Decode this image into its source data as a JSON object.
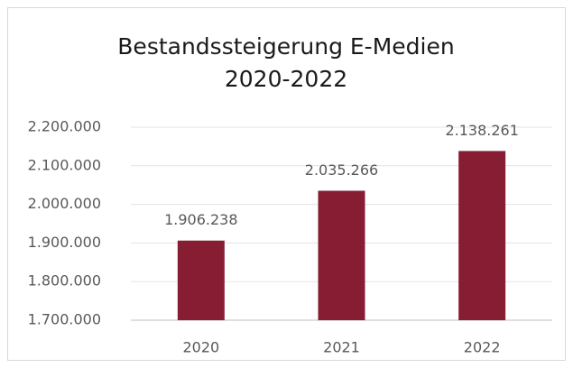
{
  "chart_data": {
    "type": "bar",
    "title": "Bestandssteigerung E-Medien 2020-2022",
    "categories": [
      "2020",
      "2021",
      "2022"
    ],
    "values": [
      1906238,
      2035266,
      2138261
    ],
    "value_labels": [
      "1.906.238",
      "2.035.266",
      "2.138.261"
    ],
    "color": "#861d33",
    "ylim": [
      1700000,
      2200000
    ],
    "yticks": [
      {
        "value": 1700000,
        "label": "1.700.000"
      },
      {
        "value": 1800000,
        "label": "1.800.000"
      },
      {
        "value": 1900000,
        "label": "1.900.000"
      },
      {
        "value": 2000000,
        "label": "2.000.000"
      },
      {
        "value": 2100000,
        "label": "2.100.000"
      },
      {
        "value": 2200000,
        "label": "2.200.000"
      }
    ],
    "grid": true
  }
}
